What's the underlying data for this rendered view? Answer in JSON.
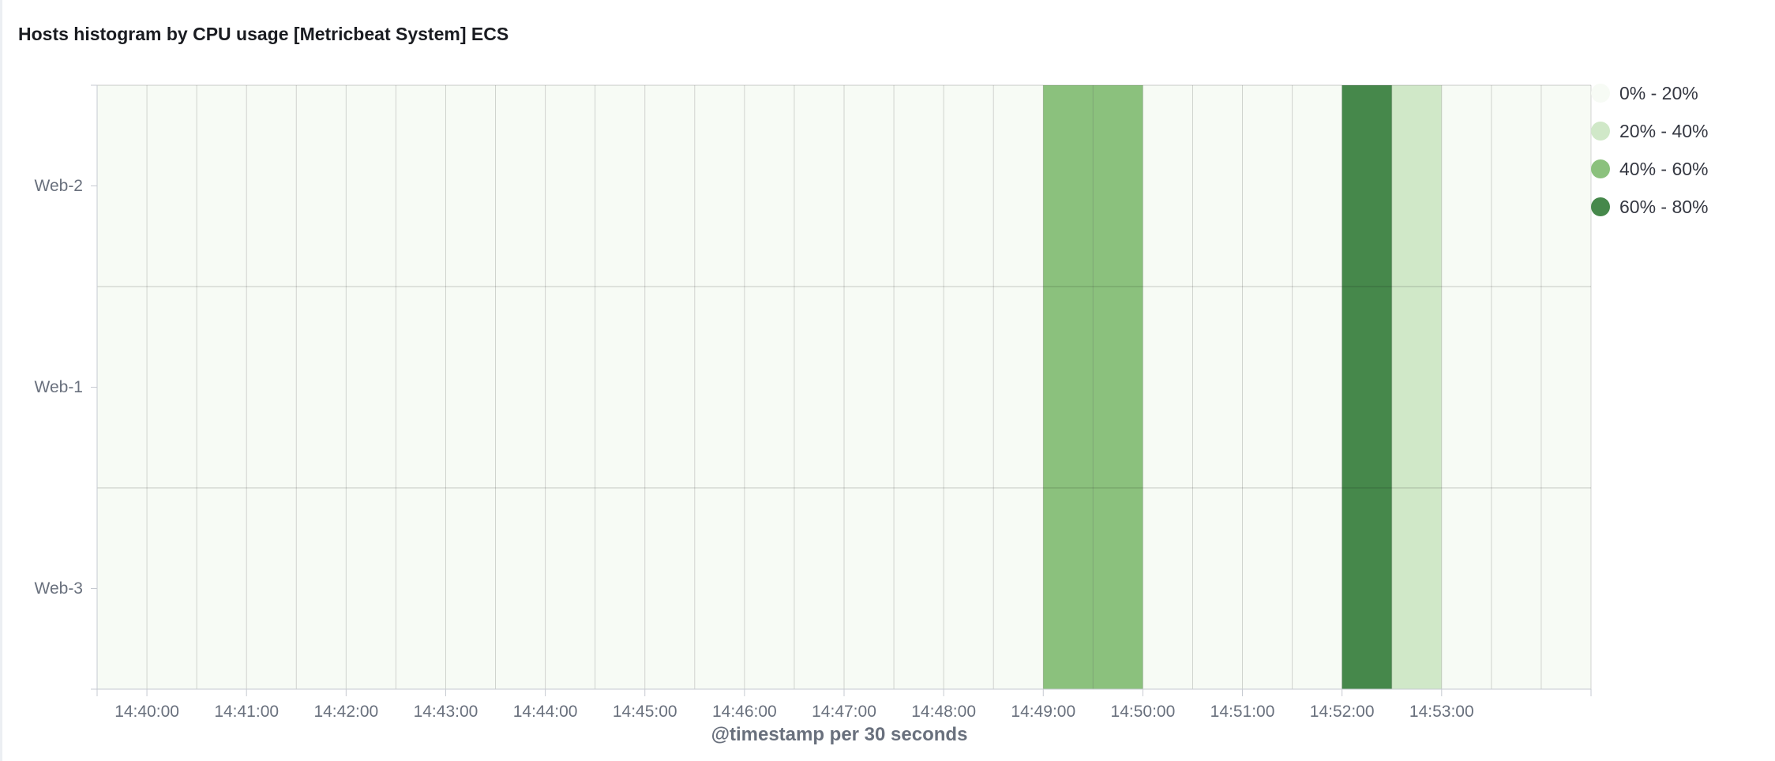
{
  "panel": {
    "title": "Hosts histogram by CPU usage [Metricbeat System] ECS"
  },
  "chart_data": {
    "type": "heatmap",
    "title": "Hosts histogram by CPU usage [Metricbeat System] ECS",
    "xlabel": "@timestamp per 30 seconds",
    "ylabel": "",
    "interval_seconds": 30,
    "x_ticks": [
      "14:40:00",
      "14:41:00",
      "14:42:00",
      "14:43:00",
      "14:44:00",
      "14:45:00",
      "14:46:00",
      "14:47:00",
      "14:48:00",
      "14:49:00",
      "14:50:00",
      "14:51:00",
      "14:52:00",
      "14:53:00"
    ],
    "x": [
      "14:39:30",
      "14:40:00",
      "14:40:30",
      "14:41:00",
      "14:41:30",
      "14:42:00",
      "14:42:30",
      "14:43:00",
      "14:43:30",
      "14:44:00",
      "14:44:30",
      "14:45:00",
      "14:45:30",
      "14:46:00",
      "14:46:30",
      "14:47:00",
      "14:47:30",
      "14:48:00",
      "14:48:30",
      "14:49:00",
      "14:49:30",
      "14:50:00",
      "14:50:30",
      "14:51:00",
      "14:51:30",
      "14:52:00",
      "14:52:30",
      "14:53:00",
      "14:53:30",
      "14:54:00"
    ],
    "y": [
      "Web-2",
      "Web-1",
      "Web-3"
    ],
    "legend": {
      "position": "right",
      "ranges": [
        {
          "label": "0% - 20%",
          "color": "#f7fbf5"
        },
        {
          "label": "20% - 40%",
          "color": "#d0e8c8"
        },
        {
          "label": "40% - 60%",
          "color": "#8bc17d"
        },
        {
          "label": "60% - 80%",
          "color": "#46884b"
        }
      ]
    },
    "cell_range_index": [
      [
        0,
        0,
        0,
        0,
        0,
        0,
        0,
        0,
        0,
        0,
        0,
        0,
        0,
        0,
        0,
        0,
        0,
        0,
        0,
        2,
        2,
        0,
        0,
        0,
        0,
        3,
        1,
        0,
        0,
        0
      ],
      [
        0,
        0,
        0,
        0,
        0,
        0,
        0,
        0,
        0,
        0,
        0,
        0,
        0,
        0,
        0,
        0,
        0,
        0,
        0,
        2,
        2,
        0,
        0,
        0,
        0,
        3,
        1,
        0,
        0,
        0
      ],
      [
        0,
        0,
        0,
        0,
        0,
        0,
        0,
        0,
        0,
        0,
        0,
        0,
        0,
        0,
        0,
        0,
        0,
        0,
        0,
        2,
        2,
        0,
        0,
        0,
        0,
        3,
        1,
        0,
        0,
        0
      ]
    ],
    "grid": true
  }
}
